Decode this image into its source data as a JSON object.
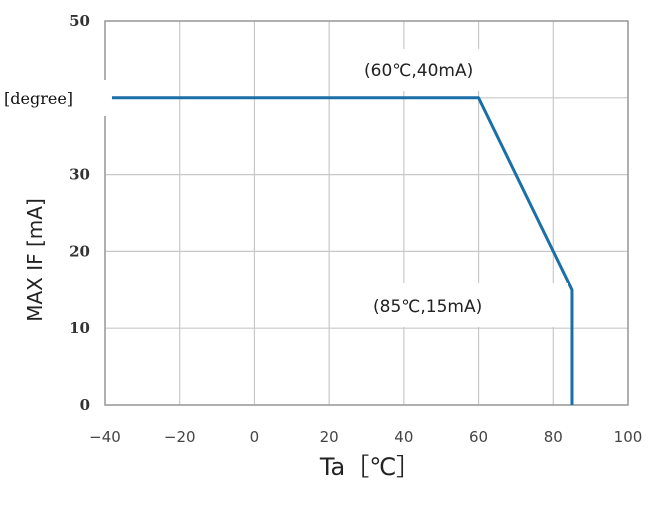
{
  "chart_data": {
    "type": "line",
    "xlabel": "Ta［℃］",
    "ylabel": "MAX IF [mA]",
    "x_ticks": [
      -40,
      -20,
      0,
      20,
      40,
      60,
      80,
      100
    ],
    "y_ticks": [
      0,
      10,
      20,
      30,
      50
    ],
    "xlim": [
      -40,
      100
    ],
    "ylim": [
      0,
      50
    ],
    "grid": true,
    "series": [
      {
        "color": "#1a6fa8",
        "points": [
          {
            "x": -40,
            "y": 40
          },
          {
            "x": 60,
            "y": 40
          },
          {
            "x": 85,
            "y": 15
          },
          {
            "x": 85,
            "y": 0
          }
        ]
      }
    ],
    "annotations": [
      {
        "text": "(60℃,40mA)",
        "x": 60,
        "y": 40
      },
      {
        "text": "(85℃,15mA)",
        "x": 85,
        "y": 15
      }
    ],
    "overlay_label": "[degree]"
  }
}
